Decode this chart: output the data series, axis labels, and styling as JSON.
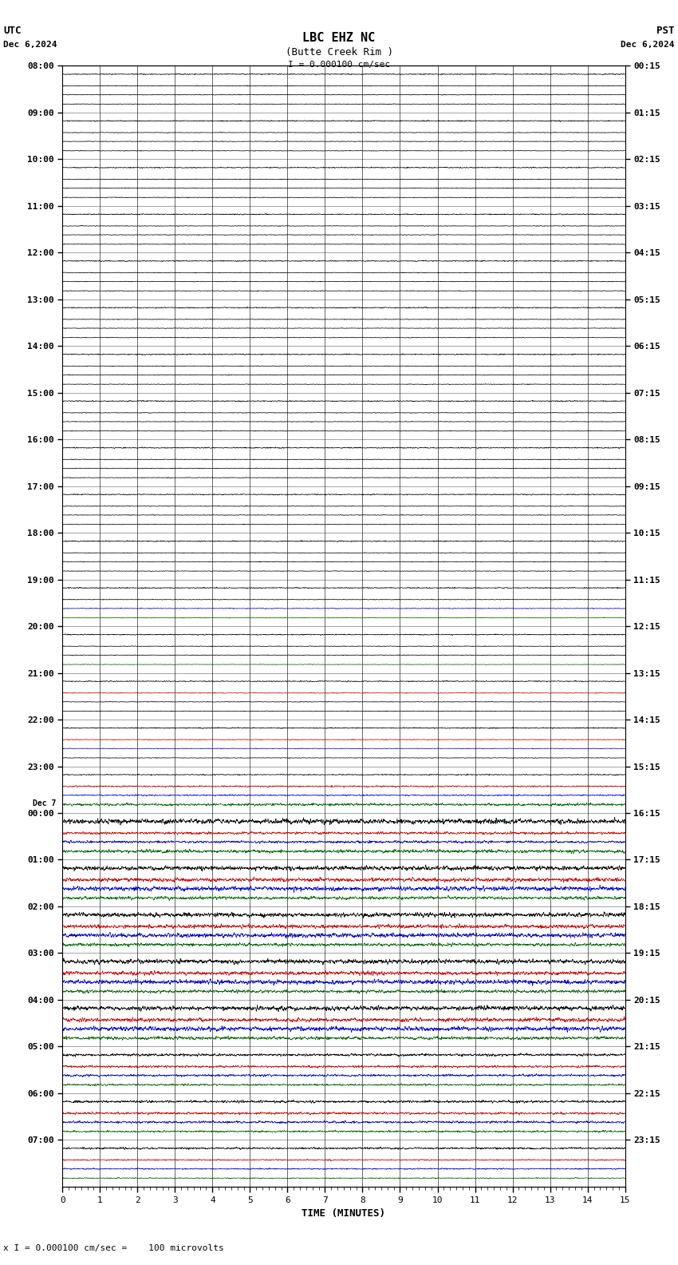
{
  "title_line1": "LBC EHZ NC",
  "title_line2": "(Butte Creek Rim )",
  "scale_label": "I = 0.000100 cm/sec",
  "utc_label": "UTC",
  "utc_date": "Dec 6,2024",
  "pst_label": "PST",
  "pst_date": "Dec 6,2024",
  "dec7_label": "Dec 7",
  "bottom_note": "x I = 0.000100 cm/sec =    100 microvolts",
  "xlabel": "TIME (MINUTES)",
  "left_times_utc": [
    "08:00",
    "09:00",
    "10:00",
    "11:00",
    "12:00",
    "13:00",
    "14:00",
    "15:00",
    "16:00",
    "17:00",
    "18:00",
    "19:00",
    "20:00",
    "21:00",
    "22:00",
    "23:00",
    "00:00",
    "01:00",
    "02:00",
    "03:00",
    "04:00",
    "05:00",
    "06:00",
    "07:00"
  ],
  "right_times_pst": [
    "00:15",
    "01:15",
    "02:15",
    "03:15",
    "04:15",
    "05:15",
    "06:15",
    "07:15",
    "08:15",
    "09:15",
    "10:15",
    "11:15",
    "12:15",
    "13:15",
    "14:15",
    "15:15",
    "16:15",
    "17:15",
    "18:15",
    "19:15",
    "20:15",
    "21:15",
    "22:15",
    "23:15"
  ],
  "dec7_row": 16,
  "n_rows": 24,
  "n_traces_per_row": 4,
  "minutes": 15,
  "bg_color": "#ffffff",
  "noise_seed": 42,
  "samples_per_row": 3000
}
